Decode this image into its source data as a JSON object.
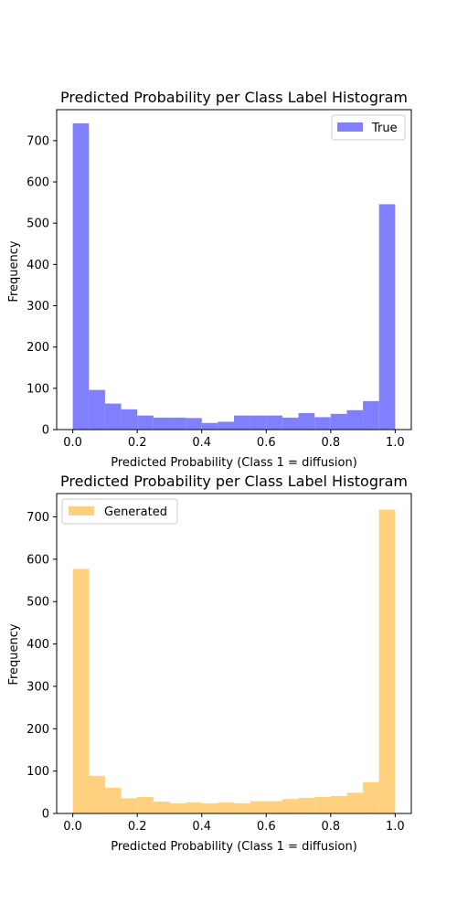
{
  "chart_data": [
    {
      "type": "bar",
      "title": "Predicted Probability per Class Label Histogram",
      "xlabel": "Predicted Probability (Class 1 = diffusion)",
      "ylabel": "Frequency",
      "xlim": [
        -0.05,
        1.05
      ],
      "ylim": [
        0,
        775
      ],
      "xticks": [
        "0.0",
        "0.2",
        "0.4",
        "0.6",
        "0.8",
        "1.0"
      ],
      "xtick_values": [
        0.0,
        0.2,
        0.4,
        0.6,
        0.8,
        1.0
      ],
      "yticks": [
        "0",
        "100",
        "200",
        "300",
        "400",
        "500",
        "600",
        "700"
      ],
      "ytick_values": [
        0,
        100,
        200,
        300,
        400,
        500,
        600,
        700
      ],
      "legend_position": "top-right",
      "grid": false,
      "bin_edges": [
        0.0,
        0.05,
        0.1,
        0.15,
        0.2,
        0.25,
        0.3,
        0.35,
        0.4,
        0.45,
        0.5,
        0.55,
        0.6,
        0.65,
        0.7,
        0.75,
        0.8,
        0.85,
        0.9,
        0.95,
        1.0
      ],
      "series": [
        {
          "name": "True",
          "color": "#8080ff",
          "values": [
            742,
            96,
            63,
            49,
            34,
            29,
            29,
            28,
            16,
            19,
            34,
            34,
            34,
            29,
            40,
            30,
            38,
            47,
            69,
            546
          ]
        }
      ]
    },
    {
      "type": "bar",
      "title": "Predicted Probability per Class Label Histogram",
      "xlabel": "Predicted Probability (Class 1 = diffusion)",
      "ylabel": "Frequency",
      "xlim": [
        -0.05,
        1.05
      ],
      "ylim": [
        0,
        755
      ],
      "xticks": [
        "0.0",
        "0.2",
        "0.4",
        "0.6",
        "0.8",
        "1.0"
      ],
      "xtick_values": [
        0.0,
        0.2,
        0.4,
        0.6,
        0.8,
        1.0
      ],
      "yticks": [
        "0",
        "100",
        "200",
        "300",
        "400",
        "500",
        "600",
        "700"
      ],
      "ytick_values": [
        0,
        100,
        200,
        300,
        400,
        500,
        600,
        700
      ],
      "legend_position": "top-left",
      "grid": false,
      "bin_edges": [
        0.0,
        0.05,
        0.1,
        0.15,
        0.2,
        0.25,
        0.3,
        0.35,
        0.4,
        0.45,
        0.5,
        0.55,
        0.6,
        0.65,
        0.7,
        0.75,
        0.8,
        0.85,
        0.9,
        0.95,
        1.0
      ],
      "series": [
        {
          "name": "Generated",
          "color": "#ffd17f",
          "values": [
            577,
            89,
            61,
            36,
            39,
            28,
            24,
            26,
            24,
            26,
            24,
            29,
            29,
            34,
            37,
            39,
            41,
            49,
            74,
            717
          ]
        }
      ]
    }
  ]
}
